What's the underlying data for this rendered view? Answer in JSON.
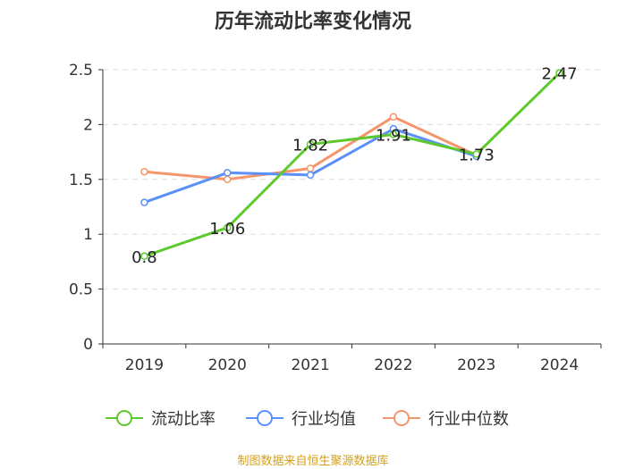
{
  "chart_data": {
    "type": "line",
    "title": "历年流动比率变化情况",
    "categories": [
      "2019",
      "2020",
      "2021",
      "2022",
      "2023",
      "2024"
    ],
    "ylim": [
      0,
      2.5
    ],
    "yticks": [
      "0",
      "0.5",
      "1",
      "1.5",
      "2",
      "2.5"
    ],
    "grid": true,
    "legend_position": "bottom",
    "series": [
      {
        "name": "流动比率",
        "color": "#5dc92d",
        "values": [
          0.8,
          1.06,
          1.82,
          1.91,
          1.73,
          2.47
        ],
        "labels": [
          "0.8",
          "1.06",
          "1.82",
          "1.91",
          "1.73",
          "2.47"
        ]
      },
      {
        "name": "行业均值",
        "color": "#5b8ff9",
        "values": [
          1.29,
          1.56,
          1.54,
          1.96,
          1.71,
          null
        ]
      },
      {
        "name": "行业中位数",
        "color": "#f5956b",
        "values": [
          1.57,
          1.5,
          1.6,
          2.07,
          1.72,
          null
        ]
      }
    ]
  },
  "source_note": "制图数据来自恒生聚源数据库"
}
